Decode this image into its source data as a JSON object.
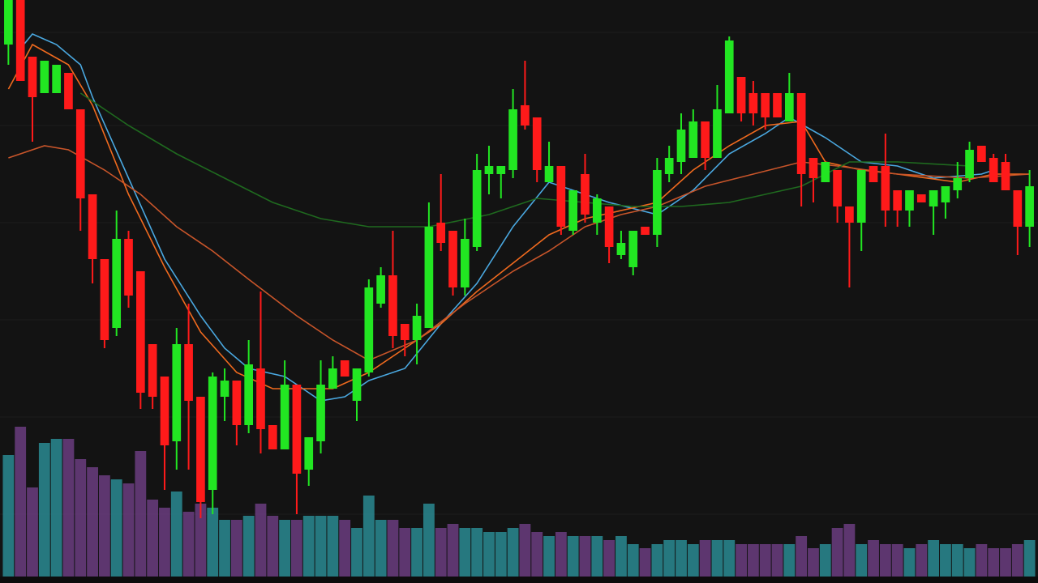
{
  "chart_data": {
    "type": "candlestick",
    "xlim": [
      -0.7,
      85.7
    ],
    "ylim": [
      0,
      720
    ],
    "up_color": "#22e622",
    "down_color": "#ff1a1a",
    "volume_up_color": "#2a8a92",
    "volume_down_color": "#6a3d80",
    "open": [
      665,
      720,
      650,
      605,
      605,
      630,
      585,
      480,
      400,
      315,
      425,
      385,
      295,
      255,
      175,
      295,
      230,
      115,
      230,
      250,
      195,
      265,
      195,
      165,
      245,
      140,
      175,
      240,
      275,
      225,
      260,
      345,
      380,
      320,
      300,
      315,
      445,
      435,
      365,
      415,
      505,
      505,
      510,
      590,
      575,
      495,
      515,
      435,
      505,
      445,
      465,
      405,
      390,
      440,
      430,
      505,
      520,
      525,
      570,
      525,
      580,
      625,
      605,
      605,
      605,
      570,
      605,
      525,
      495,
      510,
      465,
      445,
      515,
      515,
      485,
      460,
      480,
      465,
      470,
      485,
      500,
      540,
      525,
      520,
      485,
      440
    ],
    "high": [
      720,
      720,
      650,
      645,
      640,
      630,
      585,
      480,
      400,
      460,
      435,
      385,
      295,
      255,
      315,
      345,
      230,
      260,
      265,
      250,
      300,
      360,
      195,
      275,
      245,
      180,
      275,
      280,
      275,
      265,
      375,
      390,
      435,
      320,
      345,
      470,
      505,
      435,
      450,
      530,
      540,
      515,
      610,
      645,
      575,
      545,
      515,
      485,
      530,
      480,
      465,
      435,
      435,
      440,
      525,
      540,
      580,
      585,
      570,
      615,
      675,
      625,
      620,
      605,
      605,
      630,
      605,
      525,
      520,
      510,
      465,
      510,
      515,
      555,
      485,
      485,
      480,
      485,
      490,
      520,
      545,
      540,
      530,
      530,
      485,
      510
    ],
    "low": [
      640,
      620,
      545,
      605,
      605,
      585,
      435,
      370,
      290,
      305,
      340,
      215,
      215,
      115,
      140,
      140,
      80,
      85,
      200,
      170,
      185,
      160,
      165,
      165,
      85,
      120,
      160,
      240,
      255,
      200,
      255,
      340,
      290,
      280,
      270,
      315,
      410,
      355,
      355,
      410,
      480,
      475,
      500,
      560,
      495,
      495,
      430,
      430,
      445,
      430,
      395,
      400,
      380,
      430,
      415,
      495,
      505,
      525,
      510,
      525,
      580,
      570,
      565,
      560,
      575,
      570,
      465,
      470,
      495,
      445,
      365,
      410,
      495,
      440,
      440,
      440,
      470,
      430,
      450,
      475,
      495,
      520,
      495,
      485,
      405,
      415
    ],
    "close": [
      720,
      620,
      600,
      645,
      640,
      585,
      475,
      400,
      300,
      425,
      355,
      235,
      230,
      170,
      295,
      225,
      100,
      255,
      250,
      195,
      270,
      190,
      165,
      245,
      135,
      180,
      245,
      265,
      255,
      265,
      365,
      380,
      305,
      300,
      330,
      440,
      420,
      365,
      425,
      510,
      515,
      515,
      585,
      565,
      510,
      515,
      440,
      485,
      455,
      475,
      415,
      420,
      435,
      430,
      510,
      525,
      560,
      570,
      525,
      585,
      670,
      580,
      580,
      575,
      575,
      605,
      505,
      500,
      520,
      465,
      445,
      510,
      495,
      460,
      460,
      485,
      470,
      485,
      490,
      500,
      535,
      520,
      495,
      485,
      440,
      490
    ],
    "volume": [
      150,
      185,
      110,
      165,
      170,
      170,
      145,
      135,
      125,
      120,
      115,
      155,
      95,
      85,
      105,
      80,
      90,
      85,
      70,
      70,
      75,
      90,
      75,
      70,
      70,
      75,
      75,
      75,
      70,
      60,
      100,
      70,
      70,
      60,
      60,
      90,
      60,
      65,
      60,
      60,
      55,
      55,
      60,
      65,
      55,
      50,
      55,
      50,
      50,
      50,
      45,
      50,
      40,
      35,
      40,
      45,
      45,
      40,
      45,
      45,
      45,
      40,
      40,
      40,
      40,
      40,
      50,
      35,
      40,
      60,
      65,
      40,
      45,
      40,
      40,
      35,
      40,
      45,
      40,
      40,
      35,
      40,
      35,
      35,
      40,
      45
    ],
    "series": [
      {
        "color": "#4aa8e0",
        "x": [
          1,
          2,
          4,
          6,
          7,
          10,
          13,
          16,
          18,
          20,
          23,
          26,
          28,
          30,
          33,
          36,
          39,
          42,
          45,
          47,
          50,
          54,
          57,
          60,
          63,
          65,
          68,
          71,
          74,
          77,
          81,
          82
        ],
        "values": [
          660,
          678,
          665,
          640,
          600,
          500,
          400,
          330,
          290,
          265,
          255,
          225,
          230,
          250,
          265,
          320,
          370,
          440,
          495,
          485,
          470,
          455,
          485,
          530,
          555,
          575,
          550,
          520,
          515,
          500,
          505,
          510
        ]
      },
      {
        "color": "#f06a1e",
        "x": [
          0,
          2,
          5,
          7,
          10,
          13,
          16,
          19,
          22,
          25,
          27,
          30,
          33,
          36,
          39,
          42,
          45,
          48,
          51,
          54,
          57,
          60,
          63,
          66,
          68,
          71,
          74,
          79,
          82,
          85
        ],
        "values": [
          610,
          665,
          640,
          590,
          480,
          390,
          310,
          260,
          240,
          240,
          240,
          260,
          290,
          320,
          360,
          395,
          430,
          450,
          460,
          470,
          510,
          540,
          565,
          570,
          520,
          510,
          505,
          495,
          505,
          505
        ]
      },
      {
        "color": "#c8552a",
        "x": [
          0,
          3,
          5,
          8,
          11,
          14,
          17,
          20,
          24,
          27,
          30,
          34,
          38,
          42,
          45,
          48,
          51,
          54,
          58,
          62,
          66,
          69,
          74,
          80,
          85
        ],
        "values": [
          525,
          540,
          535,
          510,
          480,
          440,
          410,
          375,
          330,
          300,
          275,
          300,
          345,
          385,
          410,
          440,
          455,
          465,
          490,
          505,
          520,
          515,
          505,
          500,
          505
        ]
      },
      {
        "color": "#1f6a1f",
        "x": [
          6,
          10,
          14,
          18,
          22,
          26,
          30,
          35,
          40,
          44,
          48,
          52,
          56,
          60,
          66,
          70,
          74,
          80
        ],
        "values": [
          605,
          565,
          530,
          500,
          470,
          450,
          440,
          440,
          455,
          475,
          470,
          465,
          465,
          470,
          490,
          520,
          520,
          515
        ]
      }
    ]
  }
}
